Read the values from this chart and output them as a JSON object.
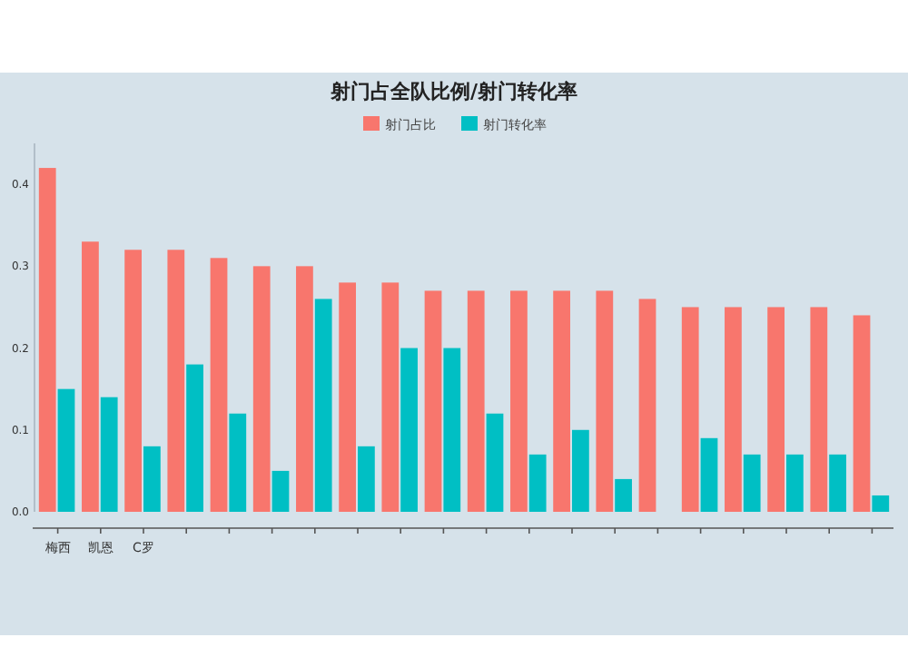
{
  "chart_data": {
    "type": "bar",
    "title": "射门占全队比例/射门转化率",
    "categories": [
      "梅西",
      "凯恩",
      "C罗",
      null,
      null,
      null,
      null,
      null,
      null,
      null,
      null,
      null,
      null,
      null,
      null,
      null,
      null,
      null,
      null,
      null
    ],
    "series": [
      {
        "name": "射门占比",
        "color": "#f8766d",
        "values": [
          0.42,
          0.33,
          0.32,
          0.32,
          0.31,
          0.3,
          0.3,
          0.28,
          0.28,
          0.27,
          0.27,
          0.27,
          0.27,
          0.27,
          0.26,
          0.25,
          0.25,
          0.25,
          0.25,
          0.24
        ]
      },
      {
        "name": "射门转化率",
        "color": "#00bfc4",
        "values": [
          0.15,
          0.14,
          0.08,
          0.18,
          0.12,
          0.05,
          0.26,
          0.08,
          0.2,
          0.2,
          0.12,
          0.07,
          0.1,
          0.04,
          null,
          0.09,
          0.07,
          0.07,
          0.07,
          0.02
        ]
      }
    ],
    "ylim": [
      0,
      0.45
    ],
    "yticks": [
      {
        "value": 0,
        "label": "0.0"
      },
      0.1,
      0.2,
      0.3,
      0.4
    ],
    "legend": "top",
    "grid": false
  }
}
